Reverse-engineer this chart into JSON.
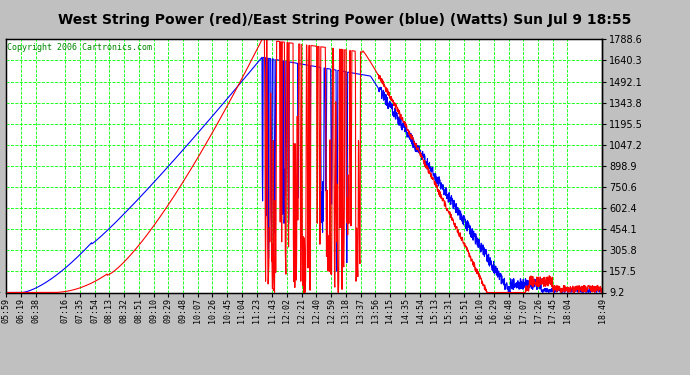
{
  "title": "West String Power (red)/East String Power (blue) (Watts) Sun Jul 9 18:55",
  "copyright": "Copyright 2006 Cartronics.com",
  "y_ticks": [
    9.2,
    157.5,
    305.8,
    454.1,
    602.4,
    750.6,
    898.9,
    1047.2,
    1195.5,
    1343.8,
    1492.1,
    1640.3,
    1788.6
  ],
  "y_min": 9.2,
  "y_max": 1788.6,
  "x_labels": [
    "05:59",
    "06:19",
    "06:38",
    "07:16",
    "07:35",
    "07:54",
    "08:13",
    "08:32",
    "08:51",
    "09:10",
    "09:29",
    "09:48",
    "10:07",
    "10:26",
    "10:45",
    "11:04",
    "11:23",
    "11:43",
    "12:02",
    "12:21",
    "12:40",
    "12:59",
    "13:18",
    "13:37",
    "13:56",
    "14:15",
    "14:35",
    "14:54",
    "15:13",
    "15:31",
    "15:51",
    "16:10",
    "16:29",
    "16:48",
    "17:07",
    "17:26",
    "17:45",
    "18:04",
    "18:49"
  ],
  "red_color": "#FF0000",
  "blue_color": "#0000FF",
  "grid_color": "#00FF00",
  "plot_bg": "#FFFFFF",
  "fig_bg": "#C0C0C0",
  "title_fontsize": 10,
  "copyright_fontsize": 6,
  "tick_fontsize": 7,
  "xtick_fontsize": 6
}
